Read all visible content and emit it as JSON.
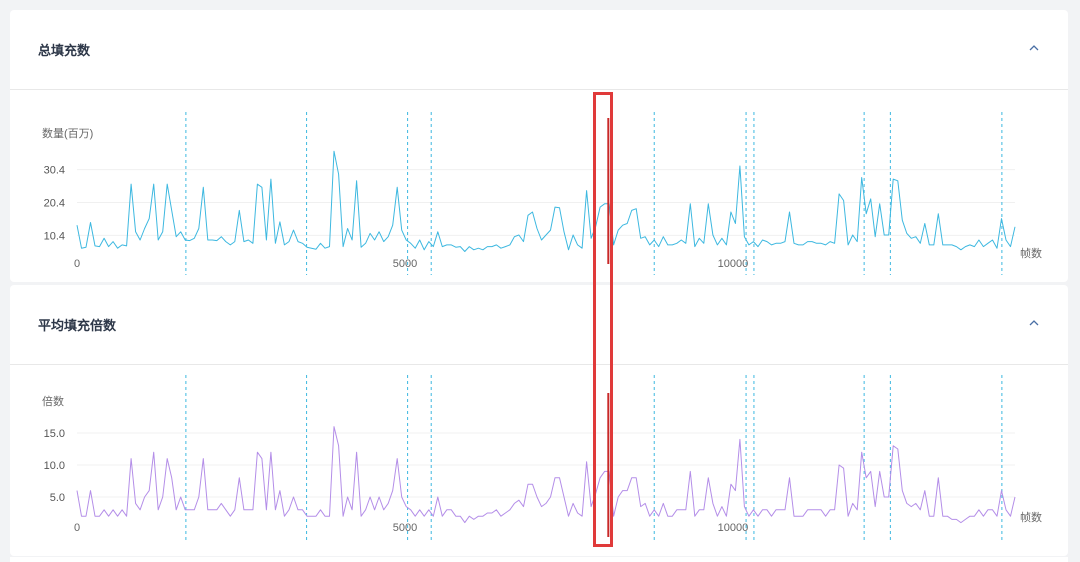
{
  "panels": [
    {
      "title": "总填充数",
      "ylabel": "数量(百万)",
      "xlabel": "帧数"
    },
    {
      "title": "平均填充倍数",
      "ylabel": "倍数",
      "xlabel": "帧数"
    }
  ],
  "colors": {
    "line1": "#3db8e0",
    "line2": "#b48ee8",
    "marker": "#3db8e0",
    "cursor": "#c82828",
    "highlight": "#e03a3a"
  },
  "icons": {
    "collapse": "chevron-up-icon"
  },
  "chart_data": [
    {
      "type": "line",
      "title": "总填充数",
      "ylabel": "数量(百万)",
      "xlabel": "帧数",
      "xlim": [
        0,
        14300
      ],
      "ylim": [
        2,
        40
      ],
      "xticks": [
        0,
        5000,
        10000
      ],
      "yticks": [
        10.4,
        20.4,
        30.4
      ],
      "vlines": [
        1660,
        3500,
        5040,
        5400,
        8800,
        10200,
        10320,
        12000,
        12400,
        14100
      ],
      "cursor_x": 8100,
      "series": [
        {
          "values": [
            13.5,
            6.5,
            6.8,
            14.3,
            7.2,
            7.0,
            9.5,
            7.0,
            8.5,
            6.5,
            7.5,
            7.2,
            26.0,
            11.5,
            9.0,
            12.5,
            15.5,
            26.0,
            9.0,
            11.5,
            26.0,
            18.0,
            10.0,
            11.5,
            9.0,
            8.8,
            9.5,
            12.5,
            25.0,
            9.0,
            9.0,
            8.8,
            10.0,
            8.5,
            7.5,
            8.5,
            18.0,
            8.5,
            9.0,
            8.0,
            26.0,
            25.0,
            9.0,
            27.5,
            8.0,
            14.5,
            7.5,
            8.5,
            12.0,
            8.5,
            8.0,
            6.8,
            6.5,
            6.2,
            8.0,
            6.5,
            7.0,
            36.0,
            29.0,
            7.0,
            12.5,
            9.0,
            27.0,
            6.8,
            8.0,
            11.0,
            9.0,
            11.5,
            8.5,
            10.0,
            13.5,
            25.0,
            12.0,
            9.0,
            8.0,
            6.5,
            9.0,
            6.0,
            8.5,
            7.0,
            11.5,
            7.0,
            7.5,
            7.5,
            6.8,
            7.0,
            5.5,
            7.0,
            6.0,
            6.5,
            6.0,
            7.0,
            7.0,
            7.5,
            6.5,
            7.0,
            7.5,
            10.0,
            10.5,
            8.5,
            16.5,
            17.5,
            12.5,
            9.0,
            10.5,
            12.0,
            19.0,
            18.8,
            11.5,
            6.0,
            10.5,
            7.5,
            6.5,
            24.0,
            9.5,
            13.0,
            19.0,
            20.0,
            20.0,
            7.5,
            12.0,
            13.5,
            14.0,
            18.0,
            18.5,
            9.5,
            10.0,
            7.5,
            9.0,
            7.0,
            10.0,
            7.5,
            7.5,
            8.0,
            9.0,
            8.0,
            20.0,
            7.0,
            9.5,
            8.0,
            20.0,
            10.5,
            7.5,
            9.5,
            7.5,
            17.5,
            14.0,
            31.5,
            10.0,
            7.5,
            8.5,
            7.0,
            9.0,
            8.5,
            7.5,
            8.0,
            8.0,
            8.5,
            17.5,
            8.0,
            7.5,
            7.5,
            8.5,
            8.5,
            8.0,
            8.0,
            7.5,
            8.5,
            8.0,
            23.0,
            21.0,
            7.5,
            10.5,
            8.5,
            28.0,
            17.0,
            21.5,
            10.0,
            20.0,
            10.5,
            10.5,
            27.5,
            27.0,
            15.0,
            11.0,
            9.5,
            10.0,
            8.0,
            14.0,
            7.5,
            7.5,
            17.0,
            7.5,
            7.5,
            7.5,
            7.0,
            6.0,
            7.0,
            7.5,
            7.0,
            9.0,
            7.0,
            8.0,
            9.0,
            6.5,
            15.5,
            9.0,
            7.0,
            13.0
          ]
        }
      ]
    },
    {
      "type": "line",
      "title": "平均填充倍数",
      "ylabel": "倍数",
      "xlabel": "帧数",
      "xlim": [
        0,
        14300
      ],
      "ylim": [
        0,
        20
      ],
      "xticks": [
        0,
        5000,
        10000
      ],
      "yticks": [
        5.0,
        10.0,
        15.0
      ],
      "vlines": [
        1660,
        3500,
        5040,
        5400,
        8800,
        10200,
        10320,
        12000,
        12400,
        14100
      ],
      "cursor_x": 8100,
      "series": [
        {
          "values": [
            6.0,
            2.0,
            2.0,
            6.0,
            2.0,
            2.0,
            3.0,
            2.0,
            3.0,
            2.0,
            3.0,
            2.0,
            11.0,
            4.0,
            3.0,
            5.0,
            6.0,
            12.0,
            3.0,
            5.0,
            11.0,
            8.0,
            3.0,
            5.0,
            3.0,
            3.0,
            3.0,
            5.0,
            11.0,
            3.0,
            3.0,
            3.0,
            4.0,
            3.0,
            2.0,
            3.0,
            8.0,
            3.0,
            3.0,
            3.0,
            12.0,
            11.0,
            3.0,
            12.0,
            3.0,
            6.0,
            2.0,
            3.0,
            5.0,
            3.0,
            3.0,
            2.0,
            2.0,
            2.0,
            3.0,
            2.0,
            2.0,
            16.0,
            13.0,
            2.0,
            5.0,
            3.0,
            12.0,
            2.0,
            3.0,
            5.0,
            3.0,
            5.0,
            3.0,
            4.0,
            6.0,
            11.0,
            5.0,
            3.5,
            3.0,
            2.0,
            3.0,
            2.0,
            3.0,
            2.0,
            5.0,
            2.0,
            3.0,
            3.0,
            2.0,
            2.0,
            1.0,
            2.0,
            1.5,
            2.0,
            2.0,
            2.5,
            2.5,
            3.0,
            2.0,
            2.5,
            3.0,
            4.0,
            4.5,
            3.5,
            7.0,
            7.0,
            5.0,
            3.5,
            4.0,
            5.0,
            8.0,
            8.0,
            5.0,
            2.0,
            4.0,
            2.5,
            2.0,
            10.5,
            3.5,
            5.5,
            8.0,
            9.0,
            9.0,
            2.0,
            5.0,
            6.0,
            6.0,
            8.0,
            8.0,
            3.5,
            4.0,
            2.0,
            3.0,
            2.0,
            4.0,
            2.0,
            2.0,
            3.0,
            3.0,
            3.0,
            9.0,
            2.0,
            3.0,
            3.0,
            8.0,
            4.0,
            2.0,
            3.5,
            2.0,
            7.0,
            6.0,
            14.0,
            3.5,
            2.0,
            3.0,
            2.0,
            3.0,
            3.0,
            2.0,
            3.0,
            3.0,
            3.0,
            8.0,
            2.0,
            2.0,
            2.0,
            3.0,
            3.0,
            3.0,
            3.0,
            2.0,
            3.0,
            3.0,
            10.0,
            9.5,
            2.0,
            4.0,
            3.0,
            12.0,
            8.0,
            9.0,
            3.5,
            9.0,
            5.0,
            5.0,
            13.0,
            12.5,
            6.0,
            4.0,
            3.5,
            4.0,
            3.0,
            6.0,
            2.0,
            2.0,
            8.0,
            2.0,
            2.0,
            1.5,
            1.5,
            1.0,
            1.5,
            2.0,
            2.0,
            3.0,
            2.0,
            3.0,
            3.0,
            2.0,
            6.0,
            3.0,
            2.0,
            5.0
          ]
        }
      ]
    }
  ]
}
